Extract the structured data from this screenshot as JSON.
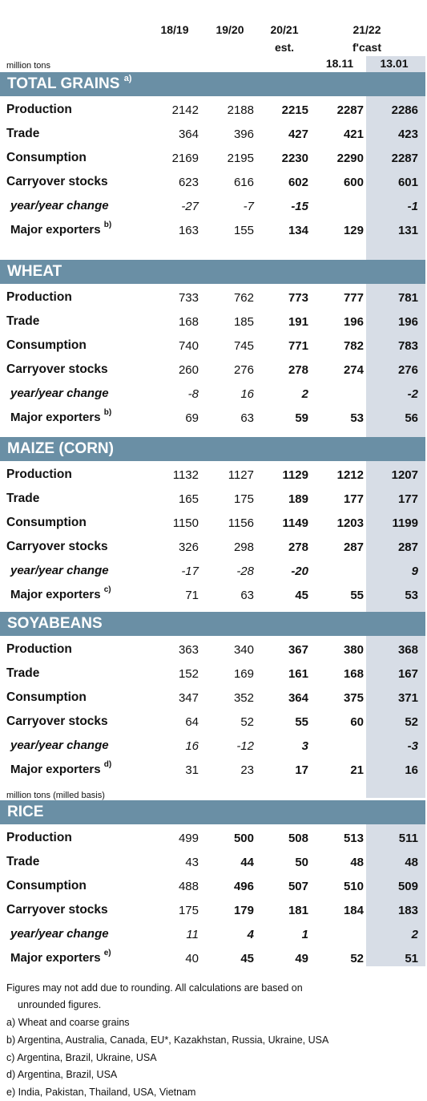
{
  "header": {
    "col1": "18/19",
    "col2": "19/20",
    "col3_line1": "20/21",
    "col3_line2": "est.",
    "col45_line1": "21/22",
    "col45_line2": "f'cast",
    "col4_date": "18.11",
    "col5_date": "13.01",
    "unit": "million tons"
  },
  "sections": [
    {
      "title": "TOTAL GRAINS",
      "note": "a)",
      "rows": [
        {
          "label": "Production",
          "values": [
            "2142",
            "2188",
            "2215",
            "2287",
            "2286"
          ]
        },
        {
          "label": "Trade",
          "values": [
            "364",
            "396",
            "427",
            "421",
            "423"
          ]
        },
        {
          "label": "Consumption",
          "values": [
            "2169",
            "2195",
            "2230",
            "2290",
            "2287"
          ]
        },
        {
          "label": "Carryover stocks",
          "values": [
            "623",
            "616",
            "602",
            "600",
            "601"
          ]
        },
        {
          "label": "year/year change",
          "values": [
            "-27",
            "-7",
            "-15",
            "",
            "-1"
          ]
        },
        {
          "label": "Major exporters",
          "note": "b)",
          "values": [
            "163",
            "155",
            "134",
            "129",
            "131"
          ]
        }
      ]
    },
    {
      "title": "WHEAT",
      "note": "",
      "rows": [
        {
          "label": "Production",
          "values": [
            "733",
            "762",
            "773",
            "777",
            "781"
          ]
        },
        {
          "label": "Trade",
          "values": [
            "168",
            "185",
            "191",
            "196",
            "196"
          ]
        },
        {
          "label": "Consumption",
          "values": [
            "740",
            "745",
            "771",
            "782",
            "783"
          ]
        },
        {
          "label": "Carryover stocks",
          "values": [
            "260",
            "276",
            "278",
            "274",
            "276"
          ]
        },
        {
          "label": "year/year change",
          "values": [
            "-8",
            "16",
            "2",
            "",
            "-2"
          ]
        },
        {
          "label": "Major exporters",
          "note": "b)",
          "values": [
            "69",
            "63",
            "59",
            "53",
            "56"
          ]
        }
      ]
    },
    {
      "title": "MAIZE (CORN)",
      "note": "",
      "rows": [
        {
          "label": "Production",
          "values": [
            "1132",
            "1127",
            "1129",
            "1212",
            "1207"
          ]
        },
        {
          "label": "Trade",
          "values": [
            "165",
            "175",
            "189",
            "177",
            "177"
          ]
        },
        {
          "label": "Consumption",
          "values": [
            "1150",
            "1156",
            "1149",
            "1203",
            "1199"
          ]
        },
        {
          "label": "Carryover stocks",
          "values": [
            "326",
            "298",
            "278",
            "287",
            "287"
          ]
        },
        {
          "label": "year/year change",
          "values": [
            "-17",
            "-28",
            "-20",
            "",
            "9"
          ]
        },
        {
          "label": "Major exporters",
          "note": "c)",
          "values": [
            "71",
            "63",
            "45",
            "55",
            "53"
          ]
        }
      ]
    },
    {
      "title": "SOYABEANS",
      "note": "",
      "rows": [
        {
          "label": "Production",
          "values": [
            "363",
            "340",
            "367",
            "380",
            "368"
          ]
        },
        {
          "label": "Trade",
          "values": [
            "152",
            "169",
            "161",
            "168",
            "167"
          ]
        },
        {
          "label": "Consumption",
          "values": [
            "347",
            "352",
            "364",
            "375",
            "371"
          ]
        },
        {
          "label": "Carryover stocks",
          "values": [
            "64",
            "52",
            "55",
            "60",
            "52"
          ]
        },
        {
          "label": "year/year change",
          "values": [
            "16",
            "-12",
            "3",
            "",
            "-3"
          ]
        },
        {
          "label": "Major exporters",
          "note": "d)",
          "values": [
            "31",
            "23",
            "17",
            "21",
            "16"
          ]
        }
      ]
    },
    {
      "title": "RICE",
      "note": "",
      "unit_above": "million tons (milled basis)",
      "rows": [
        {
          "label": "Production",
          "values": [
            "499",
            "500",
            "508",
            "513",
            "511"
          ]
        },
        {
          "label": "Trade",
          "values": [
            "43",
            "44",
            "50",
            "48",
            "48"
          ]
        },
        {
          "label": "Consumption",
          "values": [
            "488",
            "496",
            "507",
            "510",
            "509"
          ]
        },
        {
          "label": "Carryover stocks",
          "values": [
            "175",
            "179",
            "181",
            "184",
            "183"
          ]
        },
        {
          "label": "year/year change",
          "values": [
            "11",
            "4",
            "1",
            "",
            "2"
          ]
        },
        {
          "label": "Major exporters",
          "note": "e)",
          "values": [
            "40",
            "45",
            "49",
            "52",
            "51"
          ]
        }
      ]
    }
  ],
  "footnotes": [
    "Figures may not add due to rounding. All calculations are based on",
    "unrounded figures.",
    "a) Wheat and coarse grains",
    "b) Argentina, Australia, Canada, EU*, Kazakhstan, Russia, Ukraine, USA",
    "c) Argentina, Brazil, Ukraine, USA",
    "d) Argentina, Brazil, USA",
    "e) India, Pakistan, Thailand, USA, Vietnam"
  ]
}
